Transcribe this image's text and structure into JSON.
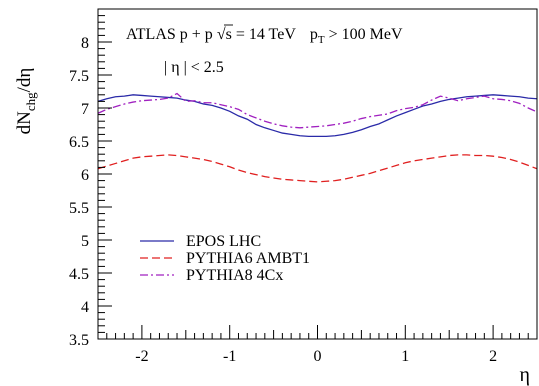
{
  "chart_data": {
    "type": "line",
    "xlabel": "η",
    "ylabel": {
      "main": "dN",
      "sub": "chg",
      "tail": "/dη"
    },
    "xlim": [
      -2.5,
      2.5
    ],
    "ylim": [
      3.5,
      8.5
    ],
    "xticks": [
      -2,
      -1,
      0,
      1,
      2
    ],
    "xtick_labels": [
      "-2",
      "-1",
      "0",
      "1",
      "2"
    ],
    "yticks": [
      3.5,
      4,
      4.5,
      5,
      5.5,
      6,
      6.5,
      7,
      7.5,
      8
    ],
    "ytick_labels": [
      "3.5",
      "4",
      "4.5",
      "5",
      "5.5",
      "6",
      "6.5",
      "7",
      "7.5",
      "8"
    ],
    "grid": false,
    "legend_position": "lower-left",
    "annotations": {
      "line1": {
        "prefix": "ATLAS p + p ",
        "sqrt": "√",
        "s_part": "s = 14 TeV",
        "pt_main": "p",
        "pt_sub": "T",
        "pt_tail": " > 100 MeV"
      },
      "line2": "| η | < 2.5"
    },
    "series": [
      {
        "name": "EPOS LHC",
        "color": "#2a2aa8",
        "dash": "solid",
        "x": [
          -2.5,
          -2.4,
          -2.3,
          -2.2,
          -2.1,
          -2.0,
          -1.9,
          -1.8,
          -1.7,
          -1.6,
          -1.5,
          -1.4,
          -1.3,
          -1.2,
          -1.1,
          -1.0,
          -0.9,
          -0.8,
          -0.7,
          -0.6,
          -0.5,
          -0.4,
          -0.3,
          -0.2,
          -0.1,
          0.0,
          0.1,
          0.2,
          0.3,
          0.4,
          0.5,
          0.6,
          0.7,
          0.8,
          0.9,
          1.0,
          1.1,
          1.2,
          1.3,
          1.4,
          1.5,
          1.6,
          1.7,
          1.8,
          1.9,
          2.0,
          2.1,
          2.2,
          2.3,
          2.4,
          2.5
        ],
        "y": [
          7.1,
          7.14,
          7.17,
          7.18,
          7.2,
          7.19,
          7.18,
          7.17,
          7.16,
          7.15,
          7.12,
          7.1,
          7.06,
          7.04,
          7.0,
          6.95,
          6.88,
          6.83,
          6.75,
          6.7,
          6.66,
          6.62,
          6.6,
          6.58,
          6.57,
          6.57,
          6.57,
          6.58,
          6.6,
          6.63,
          6.67,
          6.72,
          6.76,
          6.82,
          6.88,
          6.93,
          6.98,
          7.03,
          7.06,
          7.1,
          7.13,
          7.15,
          7.17,
          7.18,
          7.19,
          7.2,
          7.19,
          7.18,
          7.17,
          7.15,
          7.14
        ]
      },
      {
        "name": "PYTHIA6 AMBT1",
        "color": "#e02020",
        "dash": "dashed",
        "x": [
          -2.5,
          -2.4,
          -2.3,
          -2.2,
          -2.1,
          -2.0,
          -1.9,
          -1.8,
          -1.7,
          -1.6,
          -1.5,
          -1.4,
          -1.3,
          -1.2,
          -1.1,
          -1.0,
          -0.9,
          -0.8,
          -0.7,
          -0.6,
          -0.5,
          -0.4,
          -0.3,
          -0.2,
          -0.1,
          0.0,
          0.1,
          0.2,
          0.3,
          0.4,
          0.5,
          0.6,
          0.7,
          0.8,
          0.9,
          1.0,
          1.1,
          1.2,
          1.3,
          1.4,
          1.5,
          1.6,
          1.7,
          1.8,
          1.9,
          2.0,
          2.1,
          2.2,
          2.3,
          2.4,
          2.5
        ],
        "y": [
          6.08,
          6.12,
          6.16,
          6.2,
          6.24,
          6.26,
          6.27,
          6.28,
          6.29,
          6.28,
          6.26,
          6.24,
          6.22,
          6.19,
          6.15,
          6.11,
          6.06,
          6.02,
          5.99,
          5.96,
          5.94,
          5.92,
          5.91,
          5.9,
          5.89,
          5.88,
          5.89,
          5.9,
          5.92,
          5.95,
          5.98,
          6.01,
          6.05,
          6.09,
          6.13,
          6.17,
          6.2,
          6.22,
          6.24,
          6.26,
          6.28,
          6.29,
          6.29,
          6.28,
          6.28,
          6.27,
          6.25,
          6.22,
          6.18,
          6.13,
          6.08
        ]
      },
      {
        "name": "PYTHIA8 4Cx",
        "color": "#a020c0",
        "dash": "dashdot",
        "x": [
          -2.5,
          -2.4,
          -2.3,
          -2.2,
          -2.1,
          -2.0,
          -1.9,
          -1.8,
          -1.7,
          -1.6,
          -1.5,
          -1.4,
          -1.3,
          -1.2,
          -1.1,
          -1.0,
          -0.9,
          -0.8,
          -0.7,
          -0.6,
          -0.5,
          -0.4,
          -0.3,
          -0.2,
          -0.1,
          0.0,
          0.1,
          0.2,
          0.3,
          0.4,
          0.5,
          0.6,
          0.7,
          0.8,
          0.9,
          1.0,
          1.1,
          1.2,
          1.3,
          1.4,
          1.5,
          1.6,
          1.7,
          1.8,
          1.9,
          2.0,
          2.1,
          2.2,
          2.3,
          2.4,
          2.5
        ],
        "y": [
          6.92,
          6.98,
          7.02,
          7.06,
          7.09,
          7.11,
          7.12,
          7.13,
          7.15,
          7.22,
          7.1,
          7.11,
          7.08,
          7.08,
          7.05,
          7.02,
          6.98,
          6.9,
          6.85,
          6.8,
          6.76,
          6.73,
          6.71,
          6.7,
          6.71,
          6.72,
          6.73,
          6.75,
          6.77,
          6.8,
          6.84,
          6.87,
          6.89,
          6.91,
          6.96,
          6.99,
          7.01,
          7.05,
          7.12,
          7.18,
          7.15,
          7.11,
          7.14,
          7.16,
          7.18,
          7.14,
          7.13,
          7.11,
          7.07,
          7.0,
          6.94
        ]
      }
    ]
  }
}
